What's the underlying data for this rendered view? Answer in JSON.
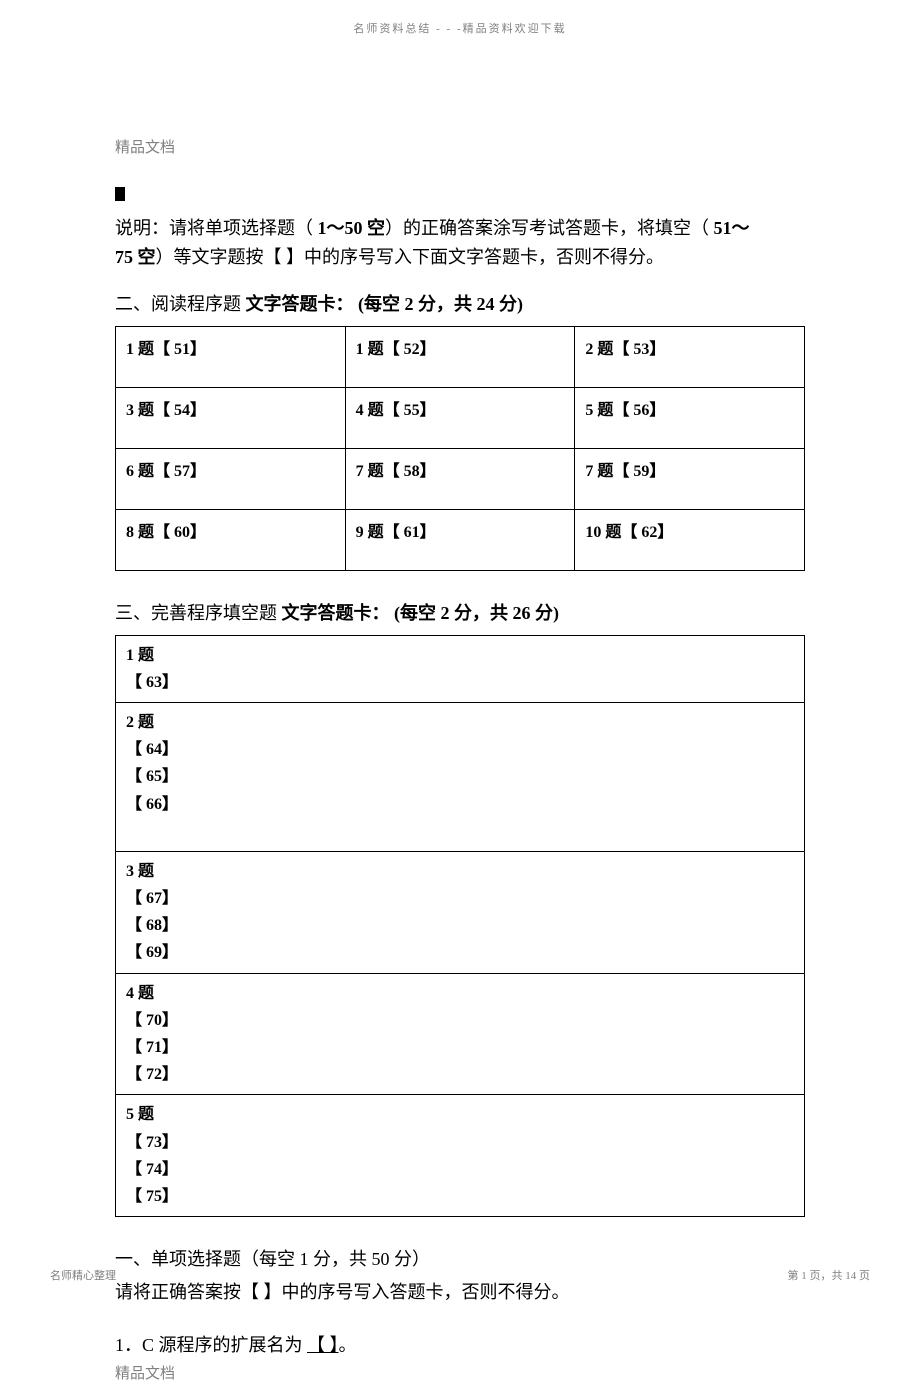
{
  "header": {
    "top_text": "名师资料总结 - - -精品资料欢迎下载"
  },
  "doc_label": "精品文档",
  "instructions": {
    "line1_a": "说明：请将单项选择题（",
    "line1_b": " 1～50 空",
    "line1_c": "）的正确答案涂写考试答题卡，将填空（",
    "line1_d": " 51～",
    "line2_a": "75 空",
    "line2_b": "）等文字题按【",
    "line2_c": " 】中的序号写入下面文字答题卡，否则不得分。"
  },
  "section2": {
    "title_a": "二、阅读程序题 ",
    "title_b": "文字答题卡：",
    "title_c": " (每空 2 分，共 24 分)",
    "cells": [
      [
        "1 题【 51】",
        "1 题【 52】",
        "2 题【 53】"
      ],
      [
        "3 题【 54】",
        "4 题【 55】",
        "5 题【 56】"
      ],
      [
        "6 题【 57】",
        "7 题【 58】",
        "7 题【 59】"
      ],
      [
        "8 题【 60】",
        "9 题【 61】",
        "10 题【 62】"
      ]
    ]
  },
  "section3": {
    "title_a": "三、完善程序填空题 ",
    "title_b": "文字答题卡：",
    "title_c": " (每空 2 分，共 26 分)",
    "rows": [
      "1 题\n【 63】",
      "2 题\n【 64】\n【 65】\n【 66】\n ",
      "3 题\n【 67】\n【 68】\n【 69】",
      "4 题\n【 70】\n【 71】\n【 72】",
      "5 题\n【 73】\n【 74】\n【 75】"
    ]
  },
  "section1": {
    "title": "一、单项选择题（每空  1 分，共 50 分）",
    "sub": "请将正确答案按【    】中的序号写入答题卡，否则不得分。",
    "q1_a": "1．C 源程序的扩展名为    ",
    "q1_b": "【 】",
    "q1_c": "。"
  },
  "doc_label_bottom": "精品文档",
  "footer": {
    "left": "名师精心整理",
    "right": "第 1 页，共 14 页"
  }
}
